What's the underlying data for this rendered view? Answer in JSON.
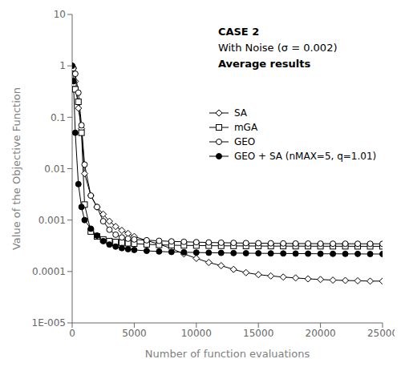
{
  "chart_data": {
    "type": "line",
    "annotations": [
      "CASE 2",
      "With Noise (σ = 0.002)",
      "Average results"
    ],
    "xlabel": "Number of function evaluations",
    "ylabel": "Value of the Objective Function",
    "log": "y",
    "grid": false,
    "legend": "upper right",
    "xlim": [
      0,
      25000
    ],
    "ylim": [
      1e-05,
      10
    ],
    "xticks": [
      0,
      5000,
      10000,
      15000,
      20000,
      25000
    ],
    "yticks": [
      {
        "value": 1e-05,
        "label": "1E-005"
      },
      0.0001,
      0.001,
      0.01,
      0.1,
      1,
      10
    ],
    "x": [
      0,
      100,
      250,
      500,
      750,
      1000,
      1500,
      2000,
      2500,
      3000,
      3500,
      4000,
      4500,
      5000,
      6000,
      7000,
      8000,
      9000,
      10000,
      11000,
      12000,
      13000,
      14000,
      15000,
      16000,
      17000,
      18000,
      19000,
      20000,
      21000,
      22000,
      23000,
      24000,
      25000
    ],
    "series": [
      {
        "name": "SA",
        "color": "#000000",
        "marker": "open_diamond",
        "values": [
          1.0,
          0.9,
          0.5,
          0.15,
          0.06,
          0.008,
          0.003,
          0.0018,
          0.0013,
          0.00095,
          0.00075,
          0.00063,
          0.00055,
          0.00048,
          0.0004,
          0.00034,
          0.00028,
          0.00022,
          0.00018,
          0.00015,
          0.00013,
          0.00011,
          9.5e-05,
          8.7e-05,
          8.2e-05,
          7.8e-05,
          7.5e-05,
          7.2e-05,
          7e-05,
          6.8e-05,
          6.7e-05,
          6.6e-05,
          6.5e-05,
          6.5e-05
        ]
      },
      {
        "name": "mGA",
        "color": "#000000",
        "marker": "open_square",
        "values": [
          0.5,
          0.45,
          0.35,
          0.2,
          0.05,
          0.002,
          0.0006,
          0.00048,
          0.00042,
          0.00039,
          0.000375,
          0.000365,
          0.000355,
          0.000348,
          0.000338,
          0.00033,
          0.000325,
          0.000322,
          0.00032,
          0.000318,
          0.000316,
          0.000315,
          0.000314,
          0.000313,
          0.000312,
          0.000312,
          0.000311,
          0.000311,
          0.00031,
          0.00031,
          0.00031,
          0.000309,
          0.000309,
          0.000309
        ]
      },
      {
        "name": "GEO",
        "color": "#000000",
        "marker": "open_circle",
        "values": [
          1.0,
          0.9,
          0.7,
          0.3,
          0.07,
          0.012,
          0.003,
          0.0018,
          0.00095,
          0.00065,
          0.00052,
          0.00046,
          0.000435,
          0.00042,
          0.000405,
          0.000395,
          0.000385,
          0.000378,
          0.000372,
          0.000367,
          0.000363,
          0.00036,
          0.000357,
          0.000355,
          0.000353,
          0.000351,
          0.00035,
          0.000349,
          0.000348,
          0.000347,
          0.000347,
          0.000346,
          0.000346,
          0.000345
        ]
      },
      {
        "name": "GEO + SA (nMAX=5, q=1.01)",
        "color": "#000000",
        "marker": "filled_circle",
        "values": [
          1.0,
          0.5,
          0.05,
          0.005,
          0.0018,
          0.001,
          0.00068,
          0.0005,
          0.00039,
          0.000335,
          0.000305,
          0.000285,
          0.000272,
          0.000263,
          0.000252,
          0.000245,
          0.00024,
          0.000237,
          0.000234,
          0.000232,
          0.00023,
          0.000228,
          0.000227,
          0.000226,
          0.000225,
          0.000224,
          0.000223,
          0.000222,
          0.000221,
          0.000221,
          0.00022,
          0.00022,
          0.000219,
          0.000219
        ]
      }
    ]
  }
}
